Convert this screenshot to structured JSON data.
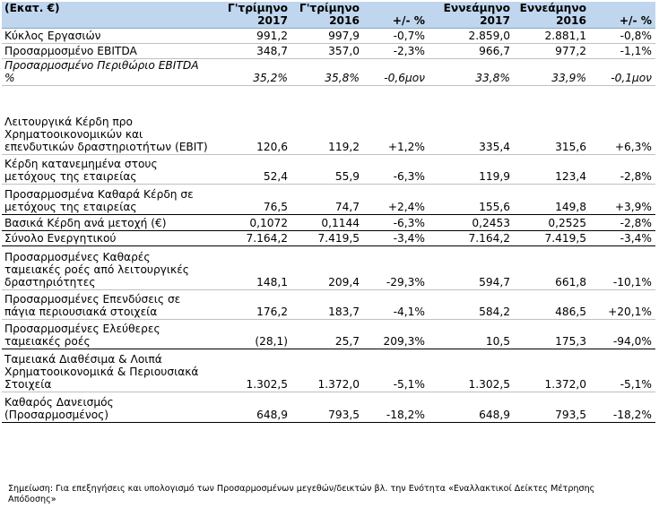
{
  "header": {
    "unit": "(Εκατ. €)",
    "col1": [
      "Γ'τρίμηνο",
      "2017"
    ],
    "col2": [
      "Γ'τρίμηνο",
      "2016"
    ],
    "col3": "+/- %",
    "col4": [
      "Εννεάμηνο",
      "2017"
    ],
    "col5": [
      "Εννεάμηνο",
      "2016"
    ],
    "col6": "+/- %"
  },
  "rows": [
    {
      "label": "Κύκλος Εργασιών",
      "q3_2017": "991,2",
      "q3_2016": "997,9",
      "q_change": "-0,7%",
      "m9_2017": "2.859,0",
      "m9_2016": "2.881,1",
      "m9_change": "-0,8%"
    },
    {
      "label": "Προσαρμοσμένο EBITDA",
      "q3_2017": "348,7",
      "q3_2016": "357,0",
      "q_change": "-2,3%",
      "m9_2017": "966,7",
      "m9_2016": "977,2",
      "m9_change": "-1,1%"
    },
    {
      "label": "Προσαρμοσμένο Περιθώριο EBITDA %",
      "q3_2017": "35,2%",
      "q3_2016": "35,8%",
      "q_change": "-0,6μον",
      "m9_2017": "33,8%",
      "m9_2016": "33,9%",
      "m9_change": "-0,1μον"
    },
    {
      "label": "Λειτουργικά Κέρδη προ Χρηματοοικονομικών και επενδυτικών δραστηριοτήτων (EBIT)",
      "q3_2017": "120,6",
      "q3_2016": "119,2",
      "q_change": "+1,2%",
      "m9_2017": "335,4",
      "m9_2016": "315,6",
      "m9_change": "+6,3%"
    },
    {
      "label": "Κέρδη κατανεμημένα στους μετόχους της εταιρείας",
      "q3_2017": "52,4",
      "q3_2016": "55,9",
      "q_change": "-6,3%",
      "m9_2017": "119,9",
      "m9_2016": "123,4",
      "m9_change": "-2,8%"
    },
    {
      "label": "Προσαρμοσμένα Καθαρά Κέρδη σε μετόχους της εταιρείας",
      "q3_2017": "76,5",
      "q3_2016": "74,7",
      "q_change": "+2,4%",
      "m9_2017": "155,6",
      "m9_2016": "149,8",
      "m9_change": "+3,9%"
    },
    {
      "label": "Βασικά Κέρδη ανά μετοχή (€)",
      "q3_2017": "0,1072",
      "q3_2016": "0,1144",
      "q_change": "-6,3%",
      "m9_2017": "0,2453",
      "m9_2016": "0,2525",
      "m9_change": "-2,8%"
    },
    {
      "label": "Σύνολο Ενεργητικού",
      "q3_2017": "7.164,2",
      "q3_2016": "7.419,5",
      "q_change": "-3,4%",
      "m9_2017": "7.164,2",
      "m9_2016": "7.419,5",
      "m9_change": "-3,4%"
    },
    {
      "label": "Προσαρμοσμένες Καθαρές ταμειακές ροές από λειτουργικές δραστηριότητες",
      "q3_2017": "148,1",
      "q3_2016": "209,4",
      "q_change": "-29,3%",
      "m9_2017": "594,7",
      "m9_2016": "661,8",
      "m9_change": "-10,1%"
    },
    {
      "label": "Προσαρμοσμένες Επενδύσεις σε πάγια περιουσιακά στοιχεία",
      "q3_2017": "176,2",
      "q3_2016": "183,7",
      "q_change": "-4,1%",
      "m9_2017": "584,2",
      "m9_2016": "486,5",
      "m9_change": "+20,1%"
    },
    {
      "label": "Προσαρμοσμένες Ελεύθερες ταμειακές ροές",
      "q3_2017": "(28,1)",
      "q3_2016": "25,7",
      "q_change": "209,3%",
      "m9_2017": "10,5",
      "m9_2016": "175,3",
      "m9_change": "-94,0%"
    },
    {
      "label": "Ταμειακά Διαθέσιμα & Λοιπά Χρηματοοικονομικά & Περιουσιακά Στοιχεία",
      "q3_2017": "1.302,5",
      "q3_2016": "1.372,0",
      "q_change": "-5,1%",
      "m9_2017": "1.302,5",
      "m9_2016": "1.372,0",
      "m9_change": "-5,1%"
    },
    {
      "label": "Καθαρός Δανεισμός (Προσαρμοσμένος)",
      "q3_2017": "648,9",
      "q3_2016": "793,5",
      "q_change": "-18,2%",
      "m9_2017": "648,9",
      "m9_2016": "793,5",
      "m9_change": "-18,2%"
    }
  ],
  "note": "Σημείωση: Για επεξηγήσεις και υπολογισμό των Προσαρμοσμένων μεγεθών/δεικτών βλ. την Ενότητα «Εναλλακτικοί Δείκτες Μέτρησης Απόδοσης»"
}
